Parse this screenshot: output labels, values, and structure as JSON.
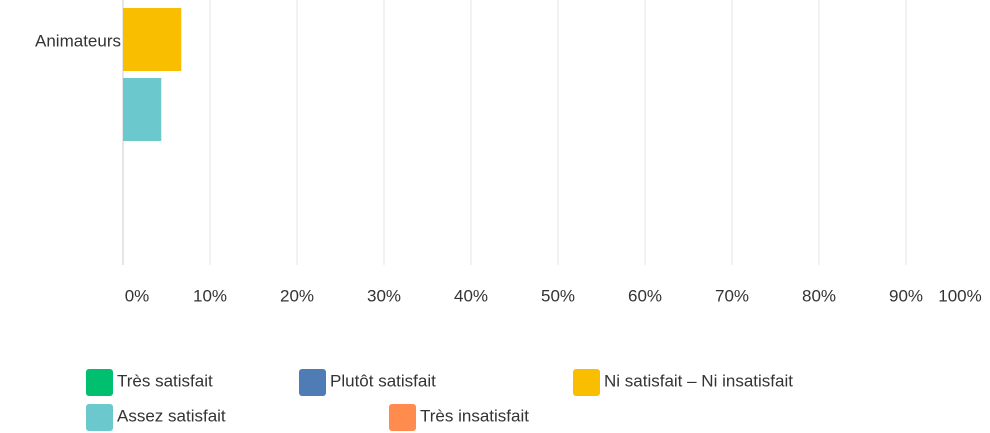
{
  "chart_data": {
    "type": "hbar",
    "categories": [
      "Animateurs"
    ],
    "series": [
      {
        "name": "Très satisfait",
        "color": "#00bf6f",
        "values": [
          null
        ]
      },
      {
        "name": "Plutôt satisfait",
        "color": "#507cb6",
        "values": [
          null
        ]
      },
      {
        "name": "Ni satisfait – Ni insatisfait",
        "color": "#f9be00",
        "values": [
          6.7
        ]
      },
      {
        "name": "Assez satisfait",
        "color": "#6bc8cd",
        "values": [
          4.4
        ]
      },
      {
        "name": "Très insatisfait",
        "color": "#ff8b4f",
        "values": [
          0
        ]
      }
    ],
    "xlim": [
      0,
      100
    ],
    "xticks": [
      {
        "value": 0,
        "label": "0%"
      },
      {
        "value": 10,
        "label": "10%"
      },
      {
        "value": 20,
        "label": "20%"
      },
      {
        "value": 30,
        "label": "30%"
      },
      {
        "value": 40,
        "label": "40%"
      },
      {
        "value": 50,
        "label": "50%"
      },
      {
        "value": 60,
        "label": "60%"
      },
      {
        "value": 70,
        "label": "70%"
      },
      {
        "value": 80,
        "label": "80%"
      },
      {
        "value": 90,
        "label": "90%"
      },
      {
        "value": 100,
        "label": "100%"
      }
    ],
    "grid": true
  }
}
